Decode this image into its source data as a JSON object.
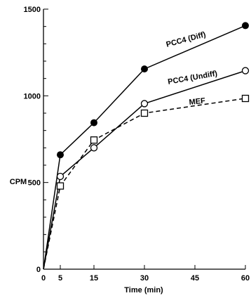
{
  "chart_data": {
    "type": "line",
    "title": "",
    "xlabel": "Time (min)",
    "ylabel": "CPM",
    "x": [
      0,
      5,
      15,
      30,
      60
    ],
    "xlim": [
      0,
      60
    ],
    "ylim": [
      0,
      1500
    ],
    "xticks": [
      0,
      5,
      15,
      30,
      45,
      60
    ],
    "yticks": [
      0,
      500,
      1000,
      1500
    ],
    "grid": false,
    "series": [
      {
        "name": "PCC4 (Diff)",
        "values": [
          0,
          660,
          845,
          1155,
          1405
        ],
        "marker": "filled-circle",
        "line": "solid"
      },
      {
        "name": "PCC4 (Undiff)",
        "values": [
          0,
          535,
          700,
          955,
          1145
        ],
        "marker": "open-circle",
        "line": "solid"
      },
      {
        "name": "MEF",
        "values": [
          0,
          480,
          745,
          900,
          985
        ],
        "marker": "open-square",
        "line": "dashed"
      }
    ]
  }
}
